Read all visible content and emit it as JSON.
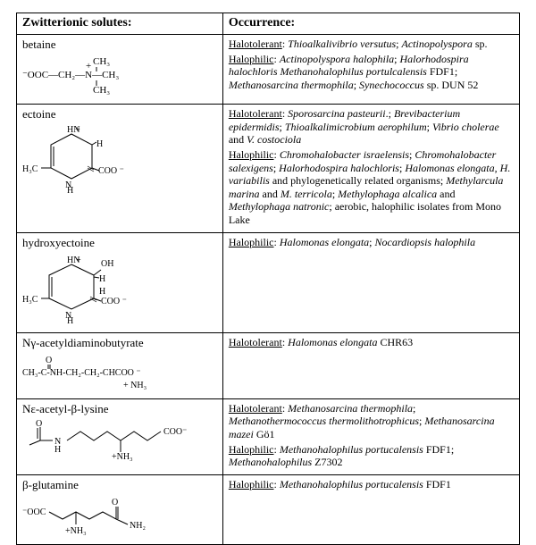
{
  "header": {
    "solutes": "Zwitterionic solutes:",
    "occurrence": "Occurrence:"
  },
  "rows": [
    {
      "name": "betaine",
      "svg": "<svg width='150' height='48' viewBox='0 0 150 48'><g font-family=\"Times New Roman\" font-size='11' fill='#000' text-anchor='start'><text x='0' y='27'>⁻OOC—CH₂—N—CH₃</text><text x='79' y='12'>CH₃</text><text x='79' y='44'>CH₃</text><text x='71' y='17'>+</text><line x1='83' y1='15' x2='83' y2='20' stroke='#000'/><line x1='83' y1='30' x2='83' y2='36' stroke='#000'/></g></svg>",
      "occurrence": "<p><span class='category'>Halotolerant</span>: <i>Thioalkalivibrio versutus</i>; <i>Actinopolyspora</i> sp.</p><p><span class='category'>Halophilic</span>: <i>Actinopolyspora halophila</i>; <i>Halorhodospira halochloris</i> <i>Methanohalophilus portulcalensis</i> FDF1; <i>Methanosarcina thermophila</i>; <i>Synechococcus</i> sp. DUN 52</p>"
    },
    {
      "name": "ectoine",
      "svg": "<svg width='130' height='78' viewBox='0 0 130 78'><g stroke='#000' fill='none' stroke-width='1'><polygon points='55,12 78,24 78,50 55,62 32,50 32,24'/><line x1='35' y1='26' x2='35' y2='48'/></g><g font-family=\"Times New Roman\" font-size='10' fill='#000'><text x='50' y='10'>HN</text><text x='59' y='10'>+</text><text x='48' y='72'>N</text><text x='50' y='78'>H</text><text x='0' y='54'>H₃C</text><line x1='21' y1='50' x2='32' y2='50' stroke='#000'/><text x='83' y='26'>H</text><line x1='78' y1='24' x2='83' y2='21' stroke='#000'/><text x='85' y='56'>COO ⁻</text><line x1='78' y1='50' x2='86' y2='53' stroke='#000'/><path d='M73,48 L80,52 M73,50 L80,54' stroke='#000' stroke-width='0.7'/></g></svg>",
      "occurrence": "<p><span class='category'>Halotolerant</span>: <i>Sporosarcina pasteurii</i>.; <i>Brevibacterium epidermidis</i>; <i>Thioalkalimicrobium aerophilum</i>; <i>Vibrio cholerae</i> and <i>V. costociola</i></p><p><span class='category'>Halophilic</span>: <i>Chromohalobacter israelensis</i>; <i>Chromohalobacter salexigens</i>; <i>Halorhodospira halochloris</i>; <i>Halomonas elongata</i>, <i>H. variabilis</i> and phylogenetically related organisms; <i>Methylarcula marina</i> and <i>M. terricola</i>; <i>Methylophaga alcalica</i> and <i>Methylophaga natronic</i>; aerobic, halophilic isolates from Mono Lake</p>"
    },
    {
      "name": "hydroxyectoine",
      "svg": "<svg width='140' height='82' viewBox='0 0 140 82'><g stroke='#000' fill='none' stroke-width='1'><polygon points='55,14 80,26 80,52 55,64 30,52 30,26'/><line x1='33' y1='28' x2='33' y2='50'/></g><g font-family=\"Times New Roman\" font-size='10' fill='#000'><text x='50' y='12'>HN</text><text x='60' y='12'>+</text><text x='48' y='74'>N</text><text x='50' y='80'>H</text><text x='0' y='56'>H₃C</text><line x1='21' y1='52' x2='30' y2='52' stroke='#000'/><text x='88' y='16'>OH</text><line x1='80' y1='26' x2='88' y2='20' stroke='#000'/><text x='86' y='33'>H</text><line x1='80' y1='28' x2='86' y2='29' stroke='#000'/><text x='88' y='58'>COO ⁻</text><line x1='80' y1='52' x2='88' y2='55' stroke='#000'/><path d='M76,50 L83,54 M76,52 L83,56' stroke='#000' stroke-width='0.7'/><text x='86' y='47'>H</text></g></svg>",
      "occurrence": "<p><span class='category'>Halophilic</span>: <i>Halomonas elongata</i>; <i>Nocardiopsis halophila</i></p>"
    },
    {
      "name": "Nγ-acetyldiaminobutyrate",
      "svg": "<svg width='200' height='44' viewBox='0 0 200 44'><g font-family=\"Times New Roman\" font-size='10' fill='#000'><text x='0' y='26'>CH₃-C-NH-CH₂-CH₂-CHCOO ⁻</text><text x='26' y='12'>O</text><line x1='29' y1='14' x2='29' y2='19' stroke='#000'/><line x1='31' y1='14' x2='31' y2='19' stroke='#000'/><text x='113' y='40'>+ NH₃</text></g></svg>",
      "occurrence": "<p><span class='category'>Halotolerant</span>: <i>Halomonas elongata</i> CHR63</p>"
    },
    {
      "name": "Nε-acetyl-β-lysine",
      "svg": "<svg width='200' height='50' viewBox='0 0 200 50'><g stroke='#000' fill='none' stroke-width='1'><path d='M20,10 L20,25 L8,30'/><line x1='17' y1='11' x2='17' y2='23'/><path d='M20,25 L34,25'/><path d='M50,25 L65,15 L80,25 L95,15 L110,25 L125,15 L140,25 L155,15'/><line x1='110' y1='25' x2='110' y2='38'/></g><g font-family=\"Times New Roman\" font-size='10' fill='#000'><text x='15' y='9'>O</text><text x='36' y='29'>N</text><text x='36' y='38'>H</text><text x='100' y='46'>+NH₃</text><text x='158' y='18'>COO⁻</text></g></svg>",
      "occurrence": "<p><span class='category'>Halotolerant</span>: <i>Methanosarcina thermophila</i>; <i>Methanothermococcus thermolithotrophicus</i>; <i>Methanosarcina mazei</i> Gö1</p><p><span class='category'>Halophilic</span>: <i>Methanohalophilus portucalensis</i> FDF1; <i>Methanohalophilus</i> Z7302</p>"
    },
    {
      "name": "β-glutamine",
      "svg": "<svg width='190' height='48' viewBox='0 0 190 48'><g stroke='#000' fill='none' stroke-width='1'><path d='M30,20 L45,28 L60,20 L75,28 L90,20 L105,28'/><line x1='60' y1='20' x2='60' y2='34'/><line x1='105' y1='28' x2='105' y2='14'/><line x1='107' y1='28' x2='107' y2='14'/><line x1='105' y1='28' x2='118' y2='34'/></g><g font-family=\"Times New Roman\" font-size='10' fill='#000'><text x='0' y='23'>⁻OOC</text><text x='48' y='44'>+NH₃</text><text x='100' y='12'>O</text><text x='120' y='38'>NH₂</text></g></svg>",
      "occurrence": "<p><span class='category'>Halophilic</span>: <i>Methanohalophilus portucalensis</i> FDF1</p>"
    }
  ]
}
